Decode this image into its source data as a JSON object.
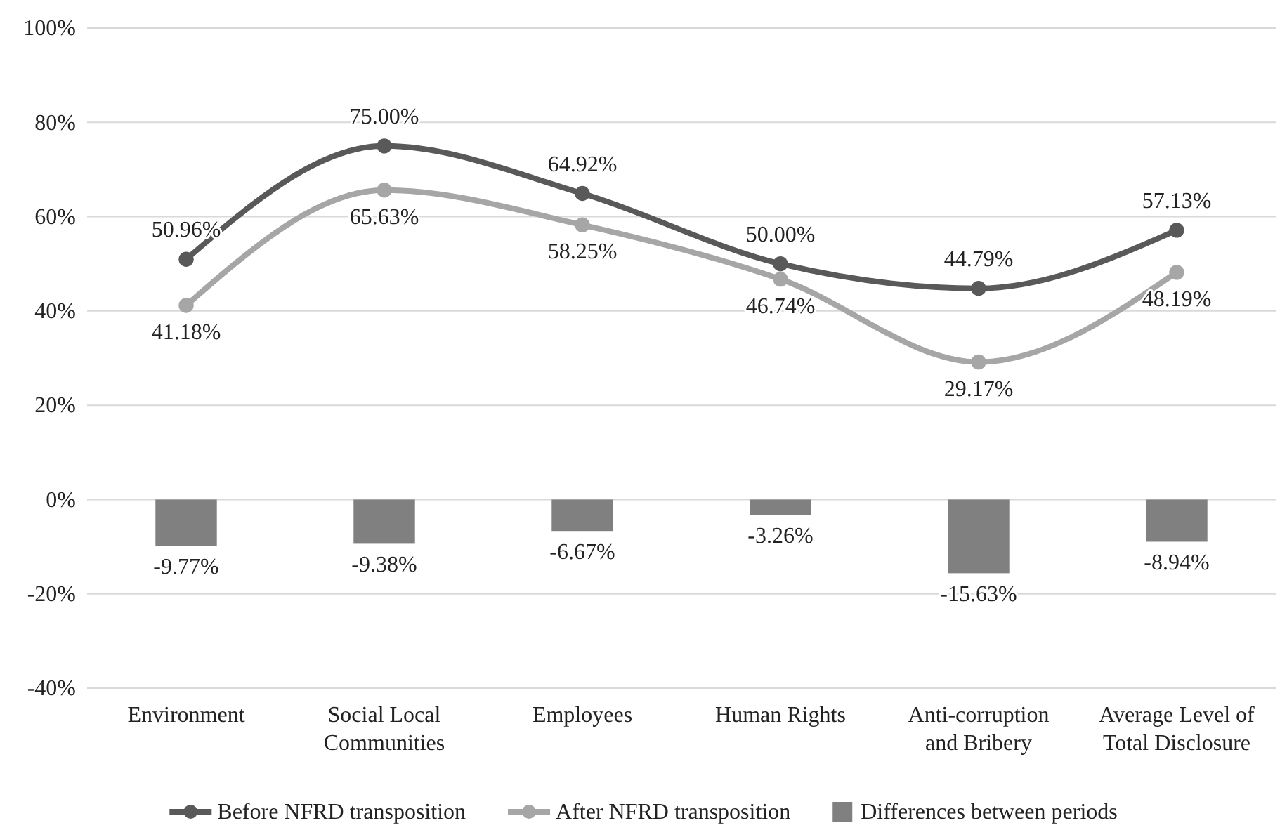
{
  "chart_data": {
    "type": "line",
    "categories": [
      "Environment",
      "Social Local Communities",
      "Employees",
      "Human Rights",
      "Anti-corruption and Bribery",
      "Average Level of Total Disclosure"
    ],
    "series": [
      {
        "name": "Before NFRD transposition",
        "color": "#595959",
        "values": [
          50.96,
          75.0,
          64.92,
          50.0,
          44.79,
          57.13
        ],
        "value_labels": [
          "50.96%",
          "75.00%",
          "64.92%",
          "50.00%",
          "44.79%",
          "57.13%"
        ]
      },
      {
        "name": "After NFRD transposition",
        "color": "#a6a6a6",
        "values": [
          41.18,
          65.63,
          58.25,
          46.74,
          29.17,
          48.19
        ],
        "value_labels": [
          "41.18%",
          "65.63%",
          "58.25%",
          "46.74%",
          "29.17%",
          "48.19%"
        ]
      },
      {
        "name": "Differences between periods",
        "type": "bar",
        "color": "#808080",
        "values": [
          -9.77,
          -9.38,
          -6.67,
          -3.26,
          -15.63,
          -8.94
        ],
        "value_labels": [
          "-9.77%",
          "-9.38%",
          "-6.67%",
          "-3.26%",
          "-15.63%",
          "-8.94%"
        ]
      }
    ],
    "ylim": [
      -40,
      100
    ],
    "yticks": [
      {
        "value": -40,
        "label": "-40%"
      },
      {
        "value": -20,
        "label": "-20%"
      },
      {
        "value": 0,
        "label": "0%"
      },
      {
        "value": 20,
        "label": "20%"
      },
      {
        "value": 40,
        "label": "40%"
      },
      {
        "value": 60,
        "label": "60%"
      },
      {
        "value": 80,
        "label": "80%"
      },
      {
        "value": 100,
        "label": "100%"
      }
    ],
    "grid": "y",
    "legend": "bottom",
    "marker": "circle",
    "line_style": "solid"
  }
}
